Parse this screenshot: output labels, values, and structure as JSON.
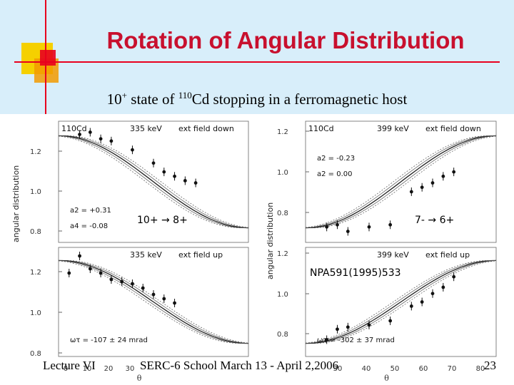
{
  "slide": {
    "title": "Rotation of Angular Distribution",
    "subtitle": {
      "pre": "10",
      "pre_sup": "+",
      "mid": " state of ",
      "mass": "110",
      "post": "Cd stopping in a ferromagnetic host"
    },
    "accent_colors": {
      "title": "#c8102e",
      "band": "#d8eefa",
      "yellow": "#f5d000",
      "orange": "#f29a00",
      "red": "#e8001e"
    }
  },
  "figure": {
    "y_axis_label": "angular distribution",
    "x_axis_symbol": "θ",
    "reference": "NPA591(1995)533",
    "panels": [
      {
        "id": "tl",
        "nucleus": "110Cd",
        "energy": "335 keV",
        "field": "ext field down",
        "params": [
          "a2 = +0.31",
          "a4 = -0.08"
        ],
        "y_ticks": [
          "1.2",
          "1.0",
          "0.8"
        ],
        "y_range": [
          0.75,
          1.3
        ],
        "transition": {
          "from": "10+",
          "to": "8+"
        },
        "points": [
          [
            10,
            1.24
          ],
          [
            15,
            1.25
          ],
          [
            20,
            1.22
          ],
          [
            25,
            1.21
          ],
          [
            35,
            1.17
          ],
          [
            45,
            1.11
          ],
          [
            50,
            1.07
          ],
          [
            55,
            1.05
          ],
          [
            60,
            1.03
          ],
          [
            65,
            1.02
          ]
        ]
      },
      {
        "id": "tr",
        "nucleus": "110Cd",
        "energy": "399 keV",
        "field": "ext field down",
        "params": [
          "a2 = -0.23",
          "a2 = 0.00"
        ],
        "y_ticks": [
          "1.2",
          "1.0",
          "0.8"
        ],
        "y_range": [
          0.72,
          1.27
        ],
        "transition": {
          "from": "7-",
          "to": "6+"
        },
        "points": [
          [
            10,
            0.79
          ],
          [
            15,
            0.8
          ],
          [
            20,
            0.77
          ],
          [
            30,
            0.79
          ],
          [
            40,
            0.8
          ],
          [
            50,
            0.95
          ],
          [
            55,
            0.97
          ],
          [
            60,
            0.99
          ],
          [
            65,
            1.02
          ],
          [
            70,
            1.04
          ]
        ]
      },
      {
        "id": "bl",
        "energy": "335 keV",
        "field": "ext field up",
        "omega_tau": "ωτ = -107 ± 24 mrad",
        "x_ticks": [
          "0",
          "10",
          "20",
          "30"
        ],
        "y_ticks": [
          "1.2",
          "1.0",
          "0.8"
        ],
        "y_range": [
          0.78,
          1.29
        ],
        "points": [
          [
            5,
            1.17
          ],
          [
            10,
            1.25
          ],
          [
            15,
            1.19
          ],
          [
            20,
            1.17
          ],
          [
            25,
            1.14
          ],
          [
            30,
            1.13
          ],
          [
            35,
            1.12
          ],
          [
            40,
            1.1
          ],
          [
            45,
            1.07
          ],
          [
            50,
            1.05
          ],
          [
            55,
            1.03
          ]
        ]
      },
      {
        "id": "br",
        "energy": "399 keV",
        "field": "ext field up",
        "omega_tau": "ωτ = -302 ± 37 mrad",
        "x_ticks": [
          "30",
          "40",
          "50",
          "60",
          "70",
          "80"
        ],
        "y_ticks": [
          "1.2",
          "1.0",
          "0.8"
        ],
        "y_range": [
          0.75,
          1.27
        ],
        "points": [
          [
            10,
            0.83
          ],
          [
            15,
            0.88
          ],
          [
            20,
            0.89
          ],
          [
            30,
            0.9
          ],
          [
            40,
            0.92
          ],
          [
            50,
            0.99
          ],
          [
            55,
            1.01
          ],
          [
            60,
            1.05
          ],
          [
            65,
            1.08
          ],
          [
            70,
            1.13
          ]
        ]
      }
    ]
  },
  "footer": {
    "left": "Lecture VI",
    "center": "SERC-6 School March 13 - April 2,2006",
    "page": "23"
  }
}
